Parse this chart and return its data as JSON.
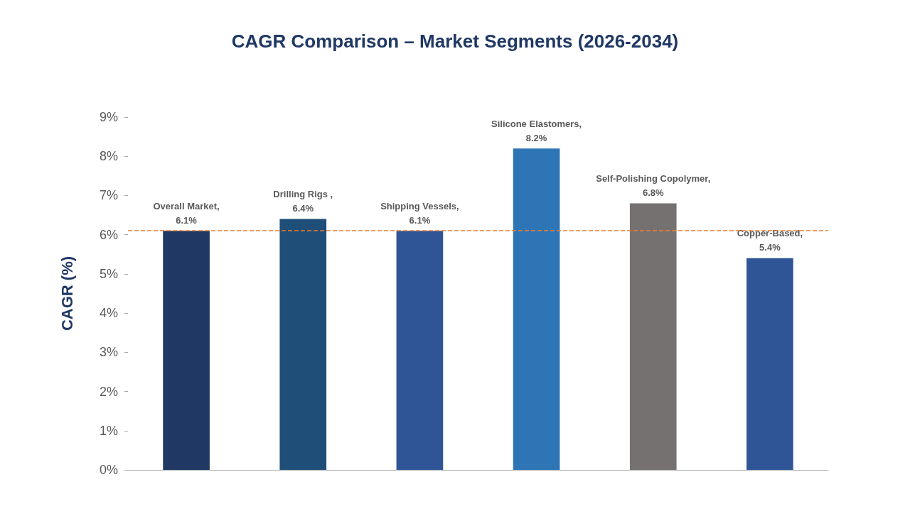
{
  "chart_data": {
    "type": "bar",
    "title": "CAGR Comparison – Market Segments (2026-2034)",
    "ylabel": "CAGR (%)",
    "categories": [
      null,
      null,
      null,
      null,
      null,
      null
    ],
    "values": [
      6.1,
      6.4,
      6.1,
      8.2,
      6.8,
      5.4
    ],
    "colors": [
      "#1f3864",
      "#1f4e79",
      "#2f5597",
      "#2e75b6",
      "#767171",
      "#2f5597"
    ],
    "value_labels": [
      "Overall Market,\n6.1%",
      "Drilling Rigs ,\n6.4%",
      "Shipping Vessels,\n6.1%",
      "Silicone Elastomers,\n8.2%",
      "Self-Polishing Copolymer,\n6.8%",
      "Copper-Based,\n5.4%"
    ],
    "ylim": [
      0,
      9
    ],
    "yticks": [
      {
        "value": 0,
        "label": "0%"
      },
      {
        "value": 1,
        "label": "1%"
      },
      {
        "value": 2,
        "label": "2%"
      },
      {
        "value": 3,
        "label": "3%"
      },
      {
        "value": 4,
        "label": "4%"
      },
      {
        "value": 5,
        "label": "5%"
      },
      {
        "value": 6,
        "label": "6%"
      },
      {
        "value": 7,
        "label": "7%"
      },
      {
        "value": 8,
        "label": "8%"
      },
      {
        "value": 9,
        "label": "9%"
      }
    ],
    "ref_lines": [
      {
        "axis": "y",
        "value": 6.1,
        "label": null,
        "color": "#ed7d31",
        "line_style": "dashed"
      }
    ],
    "grid": false
  }
}
